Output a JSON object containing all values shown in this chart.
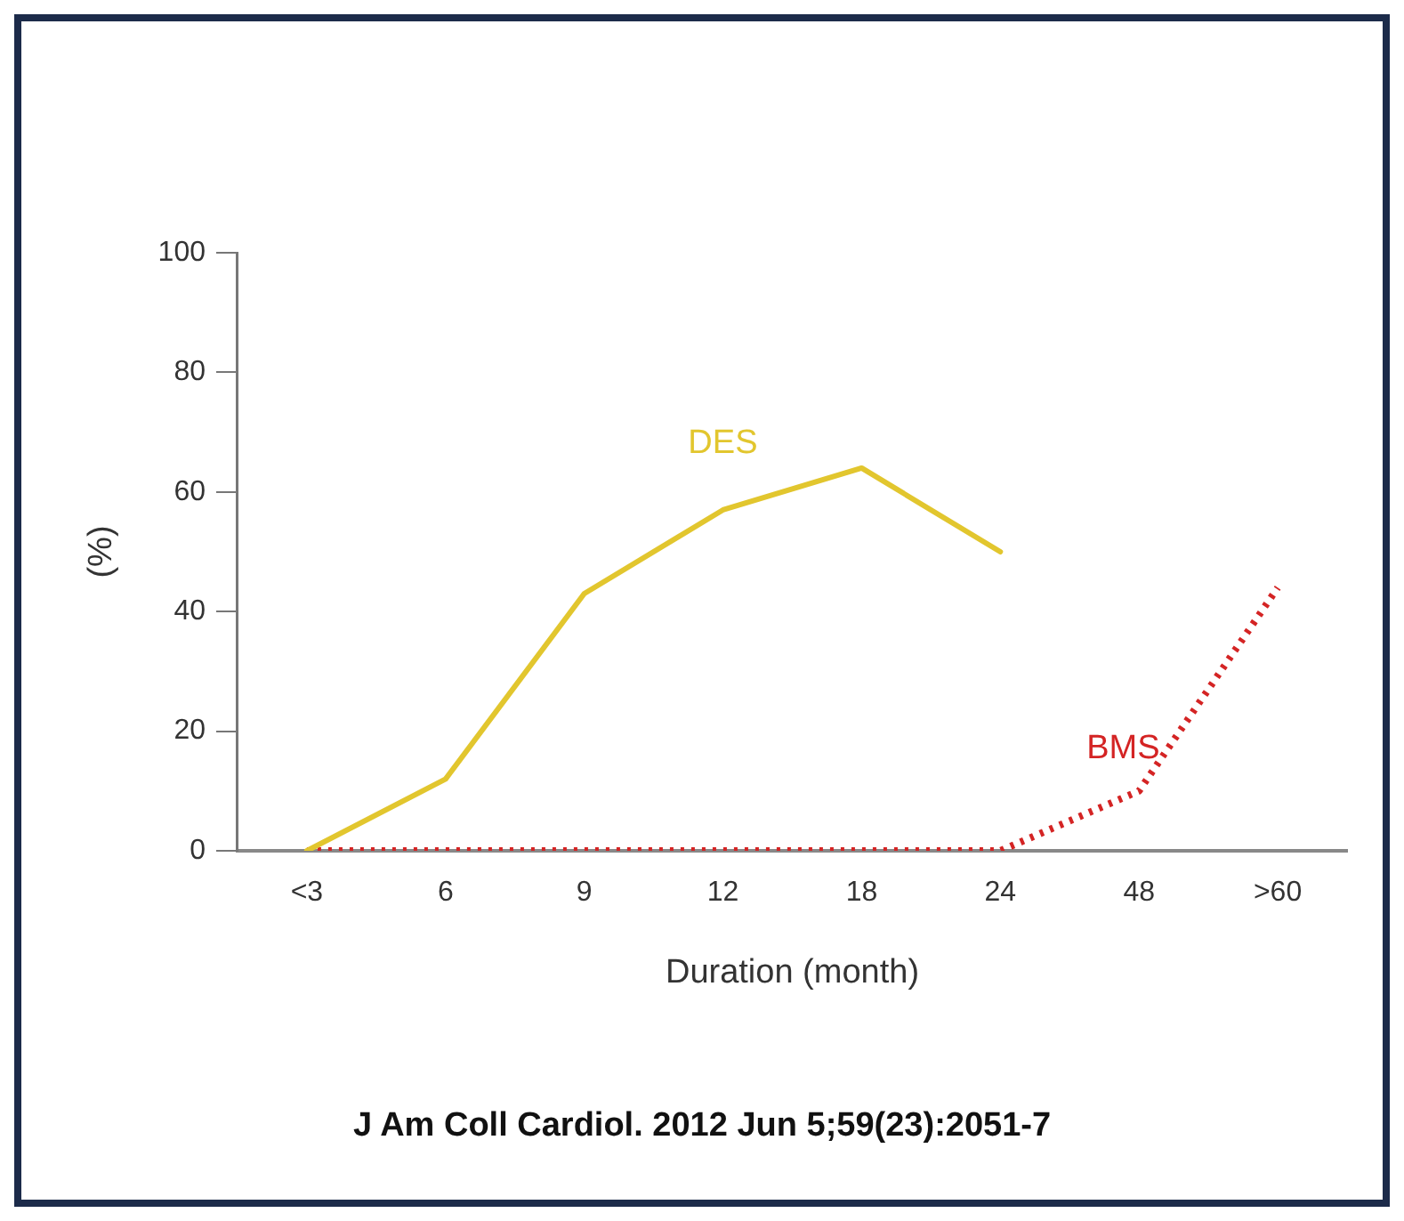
{
  "chart_data": {
    "type": "line",
    "xlabel": "Duration (month)",
    "ylabel": "(%)",
    "categories": [
      "<3",
      "6",
      "9",
      "12",
      "18",
      "24",
      "48",
      ">60"
    ],
    "series": [
      {
        "name": "DES",
        "color": "#e2c62e",
        "line_style": "solid",
        "values": [
          0,
          12,
          43,
          57,
          64,
          50,
          null,
          null
        ]
      },
      {
        "name": "BMS",
        "color": "#d42424",
        "line_style": "dotted",
        "values": [
          0,
          0,
          0,
          0,
          0,
          0,
          10,
          44
        ]
      }
    ],
    "ylim": [
      0,
      100
    ],
    "yticks": [
      0,
      20,
      40,
      60,
      80,
      100
    ],
    "grid": false,
    "legend": false,
    "marker": "none",
    "annotations": [
      "J Am Coll Cardiol. 2012 Jun 5;59(23):2051-7"
    ]
  }
}
